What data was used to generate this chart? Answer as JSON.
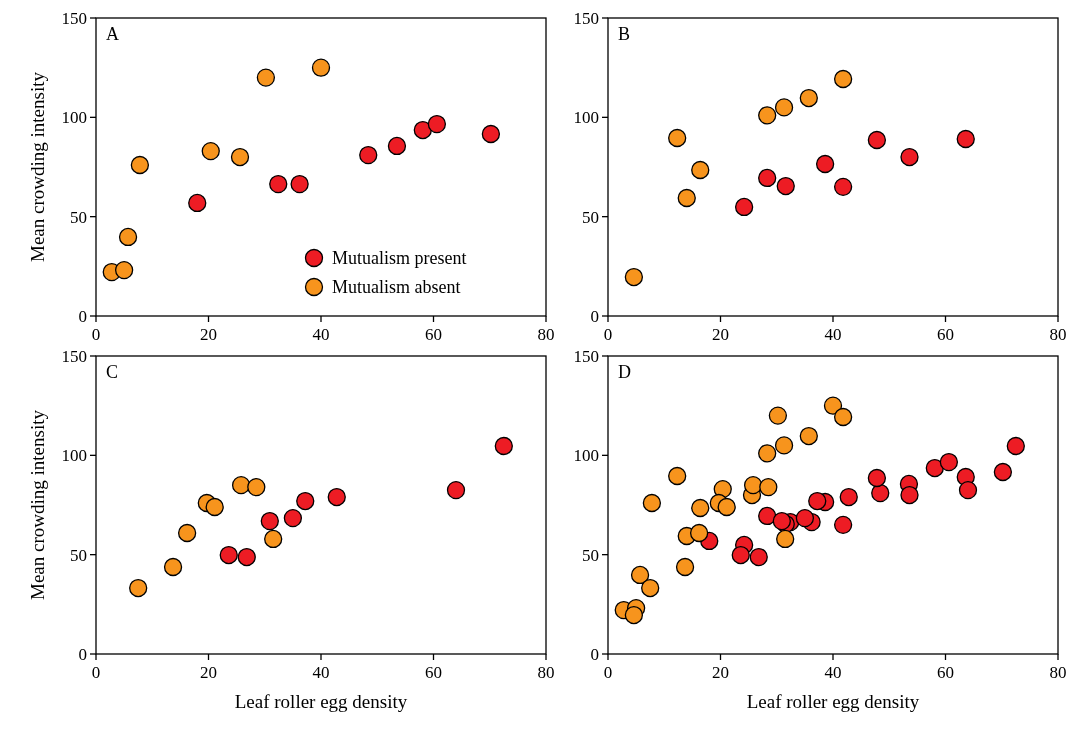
{
  "chart_data": [
    {
      "type": "scatter",
      "title": "A",
      "ylabel": "Mean crowding intensity",
      "xlim": [
        0,
        80
      ],
      "ylim": [
        0,
        150
      ],
      "xticks": [
        0,
        20,
        40,
        60,
        80
      ],
      "yticks": [
        0,
        50,
        100,
        150
      ],
      "marker": "circle",
      "grid": false,
      "legend": "bottom right",
      "series": [
        {
          "name": "Mutualism present",
          "color": "#ed1c24",
          "x": [
            18,
            32.4,
            36.2,
            48.4,
            53.5,
            58.1,
            60.6,
            70.2
          ],
          "values": [
            56.9,
            66.4,
            66.4,
            81,
            85.6,
            93.6,
            96.6,
            91.6
          ]
        },
        {
          "name": "Mutualism absent",
          "color": "#f7941d",
          "x": [
            2.8,
            5,
            5.7,
            7.8,
            20.4,
            25.6,
            30.2,
            40
          ],
          "values": [
            22.1,
            23.1,
            39.8,
            76,
            83,
            80,
            120,
            125
          ]
        }
      ]
    },
    {
      "type": "scatter",
      "title": "B",
      "xlim": [
        0,
        80
      ],
      "ylim": [
        0,
        150
      ],
      "xticks": [
        0,
        20,
        40,
        60,
        80
      ],
      "yticks": [
        0,
        50,
        100,
        150
      ],
      "marker": "circle",
      "grid": false,
      "series": [
        {
          "color": "#ed1c24",
          "x": [
            24.2,
            28.3,
            31.6,
            38.6,
            41.8,
            47.8,
            53.6,
            63.6
          ],
          "values": [
            54.9,
            69.5,
            65.4,
            76.5,
            65,
            88.6,
            80,
            89.1
          ]
        },
        {
          "color": "#f7941d",
          "x": [
            4.6,
            12.3,
            14,
            16.4,
            28.3,
            31.3,
            35.7,
            41.8
          ],
          "values": [
            19.6,
            89.6,
            59.4,
            73.5,
            101,
            105,
            109.7,
            119.3
          ]
        }
      ]
    },
    {
      "type": "scatter",
      "title": "C",
      "xlabel": "Leaf roller egg density",
      "ylabel": "Mean crowding intensity",
      "xlim": [
        0,
        80
      ],
      "ylim": [
        0,
        150
      ],
      "xticks": [
        0,
        20,
        40,
        60,
        80
      ],
      "yticks": [
        0,
        50,
        100,
        150
      ],
      "marker": "circle",
      "grid": false,
      "series": [
        {
          "color": "#ed1c24",
          "x": [
            23.6,
            26.8,
            30.9,
            35,
            37.2,
            42.8,
            64,
            72.5
          ],
          "values": [
            49.8,
            48.8,
            66.9,
            68.4,
            77,
            79,
            82.5,
            104.7
          ]
        },
        {
          "color": "#f7941d",
          "x": [
            7.5,
            13.7,
            16.2,
            19.7,
            21.1,
            25.8,
            28.5,
            31.5
          ],
          "values": [
            33.2,
            43.8,
            60.9,
            76,
            74,
            85,
            84,
            57.9
          ]
        }
      ]
    },
    {
      "type": "scatter",
      "title": "D",
      "xlabel": "Leaf roller egg density",
      "xlim": [
        0,
        80
      ],
      "ylim": [
        0,
        150
      ],
      "xticks": [
        0,
        20,
        40,
        60,
        80
      ],
      "yticks": [
        0,
        50,
        100,
        150
      ],
      "marker": "circle",
      "grid": false,
      "series": [
        {
          "color": "#ed1c24",
          "x": [
            18,
            32.4,
            36.2,
            48.4,
            53.5,
            58.1,
            60.6,
            70.2,
            24.2,
            28.3,
            31.6,
            38.6,
            41.8,
            47.8,
            53.6,
            63.6,
            23.6,
            26.8,
            30.9,
            35,
            37.2,
            42.8,
            64,
            72.5
          ],
          "values": [
            56.9,
            66.4,
            66.4,
            81,
            85.6,
            93.6,
            96.6,
            91.6,
            54.9,
            69.5,
            65.4,
            76.5,
            65,
            88.6,
            80,
            89.1,
            49.8,
            48.8,
            66.9,
            68.4,
            77,
            79,
            82.5,
            104.7
          ]
        },
        {
          "color": "#f7941d",
          "x": [
            2.8,
            5,
            5.7,
            7.8,
            20.4,
            25.6,
            30.2,
            40,
            4.6,
            12.3,
            14,
            16.4,
            28.3,
            31.3,
            35.7,
            41.8,
            7.5,
            13.7,
            16.2,
            19.7,
            21.1,
            25.8,
            28.5,
            31.5
          ],
          "values": [
            22.1,
            23.1,
            39.8,
            76,
            83,
            80,
            120,
            125,
            19.6,
            89.6,
            59.4,
            73.5,
            101,
            105,
            109.7,
            119.3,
            33.2,
            43.8,
            60.9,
            76,
            74,
            85,
            84,
            57.9
          ]
        }
      ]
    }
  ]
}
